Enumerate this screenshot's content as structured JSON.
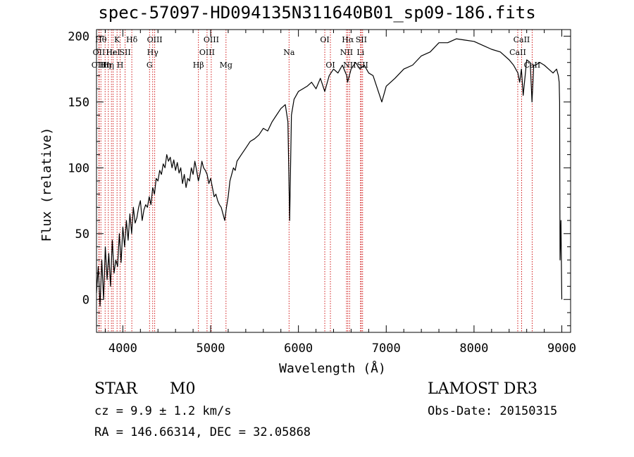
{
  "header": {
    "title": "spec-57097-HD094135N311640B01_sp09-186.fits"
  },
  "info": {
    "class_label": "STAR",
    "subclass_label": "M0",
    "survey": "LAMOST DR3",
    "cz": "cz = 9.9 ± 1.2 km/s",
    "obs_date": "Obs-Date: 20150315",
    "coords": "RA = 146.66314, DEC =  32.05868"
  },
  "chart_data": {
    "type": "line",
    "title": "spec-57097-HD094135N311640B01_sp09-186.fits",
    "xlabel": "Wavelength (Å)",
    "ylabel": "Flux (relative)",
    "xlim": [
      3700,
      9100
    ],
    "ylim": [
      -25,
      205
    ],
    "x_ticks": [
      4000,
      5000,
      6000,
      7000,
      8000,
      9000
    ],
    "x_minor_step": 200,
    "y_ticks": [
      0,
      50,
      100,
      150,
      200
    ],
    "y_minor_step": 10,
    "line_color": "#000000",
    "marker_color": "#cc0000",
    "series": [
      {
        "x": [
          3700,
          3720,
          3740,
          3760,
          3780,
          3800,
          3820,
          3840,
          3860,
          3880,
          3900,
          3920,
          3940,
          3960,
          3980,
          4000,
          4020,
          4040,
          4060,
          4080,
          4100,
          4120,
          4140,
          4160,
          4180,
          4200,
          4220,
          4240,
          4260,
          4280,
          4300,
          4320,
          4340,
          4360,
          4380,
          4400,
          4420,
          4440,
          4460,
          4480,
          4500,
          4520,
          4540,
          4560,
          4580,
          4600,
          4620,
          4640,
          4660,
          4680,
          4700,
          4720,
          4740,
          4760,
          4780,
          4800,
          4820,
          4840,
          4860,
          4880,
          4900,
          4920,
          4940,
          4960,
          4980,
          5000,
          5020,
          5040,
          5060,
          5080,
          5100,
          5120,
          5140,
          5160,
          5180,
          5200,
          5220,
          5240,
          5260,
          5280,
          5300,
          5350,
          5400,
          5450,
          5500,
          5550,
          5600,
          5650,
          5700,
          5750,
          5800,
          5850,
          5880,
          5900,
          5920,
          5950,
          6000,
          6050,
          6100,
          6150,
          6200,
          6250,
          6300,
          6350,
          6400,
          6450,
          6500,
          6550,
          6560,
          6600,
          6650,
          6700,
          6750,
          6800,
          6850,
          6900,
          6950,
          7000,
          7100,
          7200,
          7300,
          7400,
          7500,
          7600,
          7700,
          7800,
          7900,
          8000,
          8100,
          8200,
          8300,
          8400,
          8450,
          8500,
          8520,
          8540,
          8560,
          8600,
          8640,
          8660,
          8680,
          8700,
          8750,
          8800,
          8850,
          8900,
          8940,
          8960,
          8970,
          8975,
          8980,
          8990,
          9000
        ],
        "y": [
          5,
          25,
          -5,
          30,
          0,
          40,
          15,
          35,
          10,
          45,
          20,
          30,
          25,
          50,
          28,
          55,
          40,
          60,
          45,
          65,
          50,
          70,
          58,
          62,
          70,
          75,
          60,
          68,
          72,
          70,
          78,
          72,
          85,
          80,
          92,
          90,
          98,
          95,
          103,
          100,
          110,
          105,
          108,
          100,
          106,
          98,
          104,
          96,
          100,
          88,
          95,
          85,
          92,
          90,
          100,
          95,
          105,
          98,
          90,
          96,
          105,
          100,
          98,
          95,
          88,
          92,
          85,
          78,
          80,
          75,
          72,
          70,
          65,
          60,
          70,
          78,
          90,
          95,
          100,
          98,
          105,
          110,
          115,
          120,
          122,
          125,
          130,
          128,
          135,
          140,
          145,
          148,
          135,
          60,
          140,
          152,
          158,
          160,
          162,
          165,
          160,
          168,
          158,
          170,
          175,
          172,
          178,
          170,
          165,
          175,
          180,
          175,
          178,
          172,
          170,
          160,
          150,
          162,
          168,
          175,
          178,
          185,
          188,
          195,
          195,
          198,
          197,
          196,
          193,
          190,
          188,
          182,
          178,
          172,
          165,
          175,
          155,
          182,
          180,
          150,
          178,
          178,
          180,
          178,
          175,
          172,
          175,
          170,
          165,
          150,
          30,
          60,
          0
        ]
      }
    ],
    "line_markers": [
      {
        "x": 3750,
        "label": "Hθ",
        "row": 0
      },
      {
        "x": 3727,
        "label": "OII",
        "row": 1
      },
      {
        "x": 3730,
        "label": "OIII",
        "row": 2
      },
      {
        "x": 3798,
        "label": "Hη",
        "row": 2
      },
      {
        "x": 3835,
        "label": "Hη",
        "row": 2
      },
      {
        "x": 3870,
        "label": "Hε",
        "row": 1
      },
      {
        "x": 3889,
        "label": "HeI",
        "row": 1
      },
      {
        "x": 3934,
        "label": "K",
        "row": 0
      },
      {
        "x": 3969,
        "label": "H",
        "row": 2
      },
      {
        "x": 4026,
        "label": "SII",
        "row": 1
      },
      {
        "x": 4102,
        "label": "Hδ",
        "row": 0
      },
      {
        "x": 4304,
        "label": "G",
        "row": 2
      },
      {
        "x": 4340,
        "label": "Hγ",
        "row": 1
      },
      {
        "x": 4363,
        "label": "OIII",
        "row": 0
      },
      {
        "x": 4861,
        "label": "Hβ",
        "row": 2
      },
      {
        "x": 4959,
        "label": "OIII",
        "row": 1
      },
      {
        "x": 5007,
        "label": "OIII",
        "row": 0
      },
      {
        "x": 5175,
        "label": "Mg",
        "row": 2
      },
      {
        "x": 5893,
        "label": "Na",
        "row": 1
      },
      {
        "x": 6300,
        "label": "OI",
        "row": 0
      },
      {
        "x": 6364,
        "label": "OI",
        "row": 2
      },
      {
        "x": 6548,
        "label": "NII",
        "row": 1
      },
      {
        "x": 6563,
        "label": "Hα",
        "row": 0
      },
      {
        "x": 6583,
        "label": "NII",
        "row": 2
      },
      {
        "x": 6707,
        "label": "Li",
        "row": 1
      },
      {
        "x": 6716,
        "label": "SII",
        "row": 0
      },
      {
        "x": 6731,
        "label": "SII",
        "row": 2
      },
      {
        "x": 8498,
        "label": "CaII",
        "row": 1
      },
      {
        "x": 8542,
        "label": "CaII",
        "row": 0
      },
      {
        "x": 8662,
        "label": "CaII",
        "row": 2
      }
    ]
  }
}
